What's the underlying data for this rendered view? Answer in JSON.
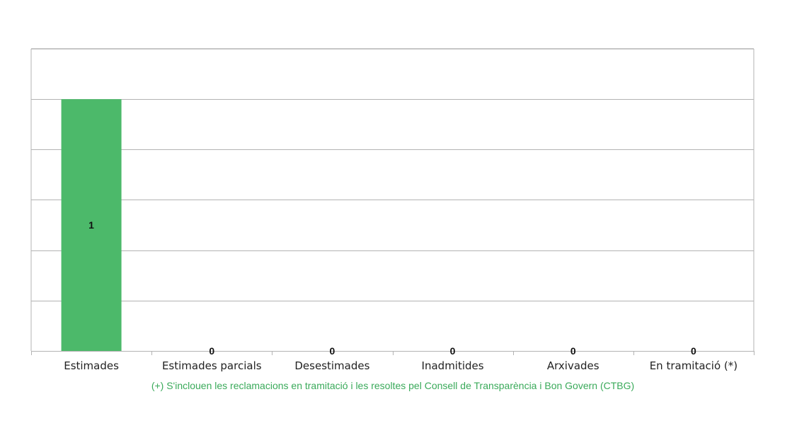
{
  "chart_data": {
    "type": "bar",
    "categories": [
      "Estimades",
      "Estimades parcials",
      "Desestimades",
      "Inadmitides",
      "Arxivades",
      "En tramitació (*)"
    ],
    "values": [
      1,
      0,
      0,
      0,
      0,
      0
    ],
    "data_labels": [
      "1",
      "0",
      "0",
      "0",
      "0",
      "0"
    ],
    "title": "",
    "xlabel": "",
    "ylabel": "",
    "ylim": [
      0,
      1.2
    ],
    "grid": true,
    "legend": "none",
    "bar_color": "#4cb96a",
    "grid_color": "#b3b3b3"
  },
  "footnote": {
    "text": "(+) S'inclouen les reclamacions en tramitació i les resoltes pel Consell de Transparència i Bon Govern (CTBG)",
    "color": "#3aaa5a"
  }
}
